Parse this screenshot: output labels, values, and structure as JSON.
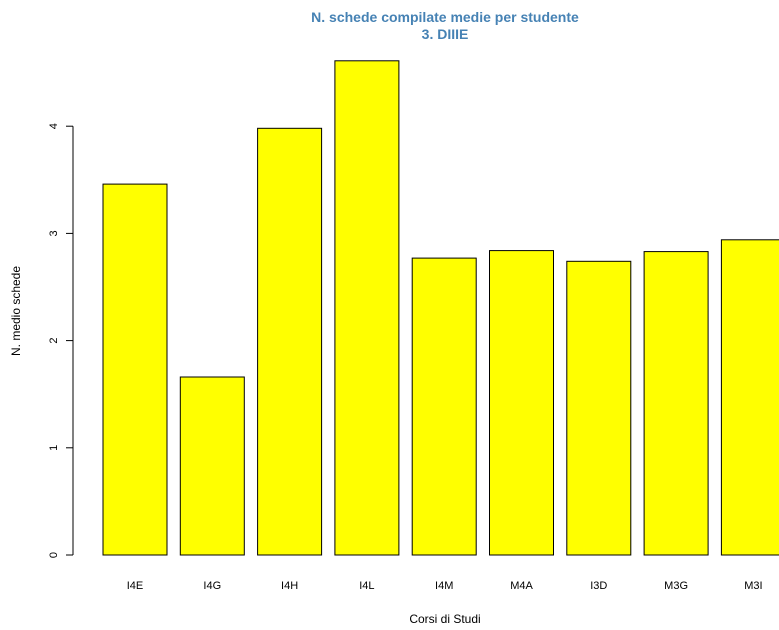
{
  "chart_data": {
    "type": "bar",
    "title": "N. schede compilate medie per studente",
    "subtitle": "3. DIIIE",
    "xlabel": "Corsi di Studi",
    "ylabel": "N. medio schede",
    "categories": [
      "I4E",
      "I4G",
      "I4H",
      "I4L",
      "I4M",
      "M4A",
      "I3D",
      "M3G",
      "M3I"
    ],
    "values": [
      3.46,
      1.66,
      3.98,
      4.61,
      2.77,
      2.84,
      2.74,
      2.83,
      2.94
    ],
    "ylim": [
      0,
      4.7
    ],
    "yticks": [
      0,
      1,
      2,
      3,
      4
    ],
    "grid": false,
    "legend": "none",
    "colors": {
      "bar_fill": "#ffff00",
      "bar_stroke": "#000000",
      "title": "#4682b4"
    }
  }
}
